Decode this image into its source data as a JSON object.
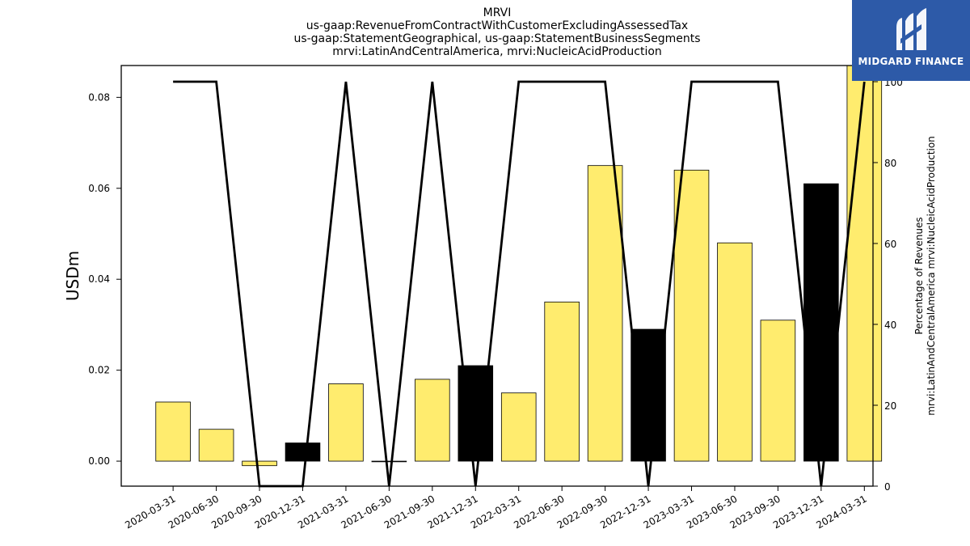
{
  "chart_data": {
    "type": "bar",
    "title_lines": [
      "MRVI",
      "us-gaap:RevenueFromContractWithCustomerExcludingAssessedTax",
      "us-gaap:StatementGeographical, us-gaap:StatementBusinessSegments",
      "mrvi:LatinAndCentralAmerica, mrvi:NucleicAcidProduction"
    ],
    "ylabel": "USDm",
    "y2label_lines": [
      "Percentage of Revenues",
      "mrvi:LatinAndCentralAmerica mrvi:NucleicAcidProduction"
    ],
    "categories": [
      "2020-03-31",
      "2020-06-30",
      "2020-09-30",
      "2020-12-31",
      "2021-03-31",
      "2021-06-30",
      "2021-09-30",
      "2021-12-31",
      "2022-03-31",
      "2022-06-30",
      "2022-09-30",
      "2022-12-31",
      "2023-03-31",
      "2023-06-30",
      "2023-09-30",
      "2023-12-31",
      "2024-03-31"
    ],
    "values": [
      0.013,
      0.007,
      -0.001,
      0.004,
      0.017,
      0.0,
      0.018,
      0.021,
      0.015,
      0.035,
      0.065,
      0.029,
      0.064,
      0.048,
      0.031,
      0.061,
      0.087
    ],
    "bar_colors": [
      "#ffec6e",
      "#ffec6e",
      "#ffec6e",
      "#000000",
      "#ffec6e",
      "#ffec6e",
      "#ffec6e",
      "#000000",
      "#ffec6e",
      "#ffec6e",
      "#ffec6e",
      "#000000",
      "#ffec6e",
      "#ffec6e",
      "#ffec6e",
      "#000000",
      "#ffec6e"
    ],
    "series": [
      {
        "axis": "right",
        "type": "line",
        "color": "#000000",
        "values": [
          100,
          100,
          0,
          0,
          100,
          0,
          100,
          0,
          100,
          100,
          100,
          0,
          100,
          100,
          100,
          0,
          100
        ]
      }
    ],
    "ylim": [
      -0.0055,
      0.087
    ],
    "y2lim": [
      0,
      104
    ],
    "yticks": [
      "0.00",
      "0.02",
      "0.04",
      "0.06",
      "0.08"
    ],
    "y2ticks": [
      "0",
      "20",
      "40",
      "60",
      "80",
      "100"
    ],
    "grid": false
  },
  "logo": {
    "text": "MIDGARD FINANCE",
    "bg_color": "#2d5aa8"
  }
}
